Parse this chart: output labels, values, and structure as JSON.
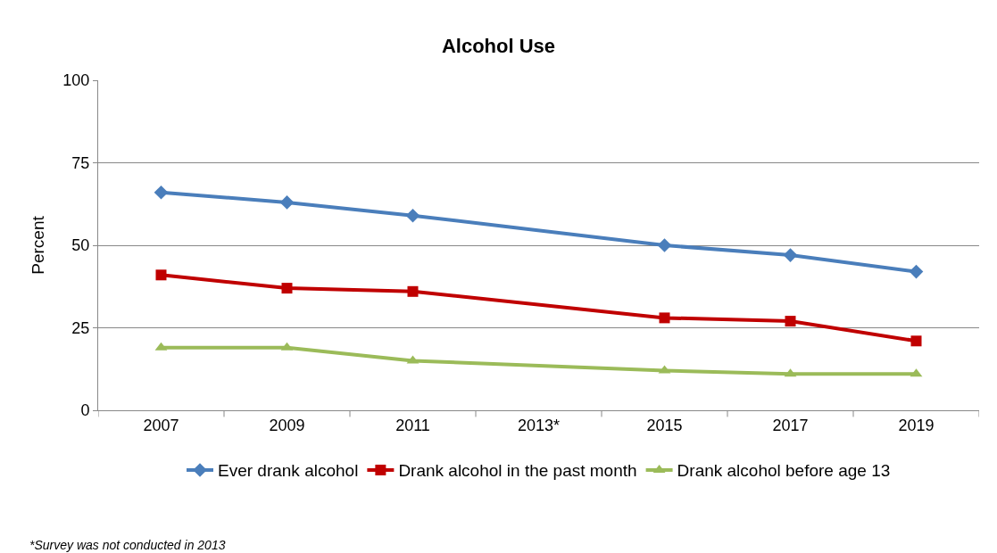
{
  "chart_data": {
    "type": "line",
    "title": "Alcohol Use",
    "ylabel": "Percent",
    "categories": [
      "2007",
      "2009",
      "2011",
      "2013*",
      "2015",
      "2017",
      "2019"
    ],
    "series": [
      {
        "name": "Ever drank alcohol",
        "color": "#4a7ebb",
        "marker": "diamond",
        "values": [
          66,
          63,
          59,
          null,
          50,
          47,
          42
        ]
      },
      {
        "name": "Drank alcohol in the past month",
        "color": "#c00000",
        "marker": "square",
        "values": [
          41,
          37,
          36,
          null,
          28,
          27,
          21
        ]
      },
      {
        "name": "Drank alcohol before age 13",
        "color": "#9bbb59",
        "marker": "triangle",
        "values": [
          19,
          19,
          15,
          null,
          12,
          11,
          11
        ]
      }
    ],
    "ylim": [
      0,
      100
    ],
    "yticks": [
      0,
      25,
      50,
      75,
      100
    ],
    "grid": "y",
    "legend": "bottom",
    "line_style": "solid",
    "annotations": [
      "*Survey was not conducted in 2013"
    ]
  }
}
